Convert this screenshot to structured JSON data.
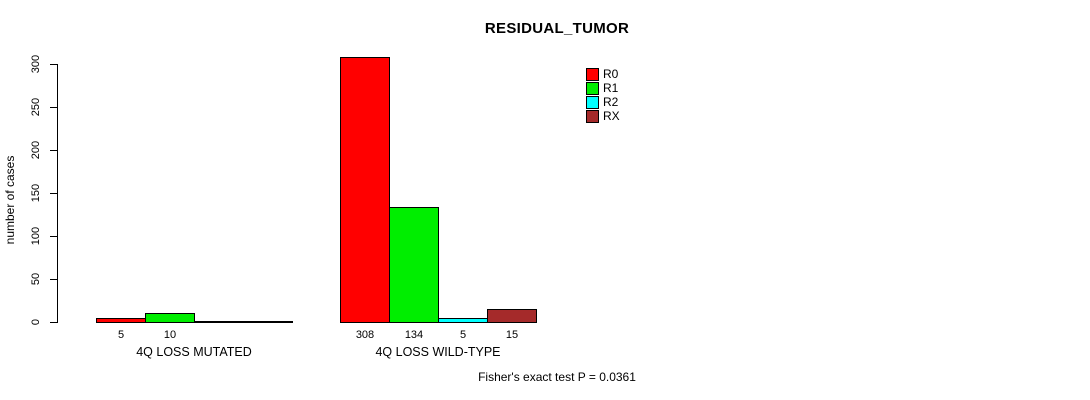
{
  "chart_data": {
    "type": "bar",
    "title": "RESIDUAL_TUMOR",
    "ylabel": "number of cases",
    "xlabel": "",
    "categories": [
      "4Q LOSS MUTATED",
      "4Q LOSS WILD-TYPE"
    ],
    "series": [
      {
        "name": "R0",
        "color": "#ff0000",
        "values": [
          5,
          308
        ]
      },
      {
        "name": "R1",
        "color": "#00ee00",
        "values": [
          10,
          134
        ]
      },
      {
        "name": "R2",
        "color": "#00ffff",
        "values": [
          0,
          5
        ]
      },
      {
        "name": "RX",
        "color": "#a52a2a",
        "values": [
          0,
          15
        ]
      }
    ],
    "value_labels": [
      [
        "5",
        "10",
        "",
        ""
      ],
      [
        "308",
        "134",
        "5",
        "15"
      ]
    ],
    "yticks": [
      0,
      50,
      100,
      150,
      200,
      250,
      300
    ],
    "ylim": [
      0,
      300
    ],
    "grid": false,
    "legend": {
      "position": "top-right",
      "entries": [
        "R0",
        "R1",
        "R2",
        "RX"
      ]
    },
    "annotation": "Fisher's exact test P = 0.0361"
  }
}
